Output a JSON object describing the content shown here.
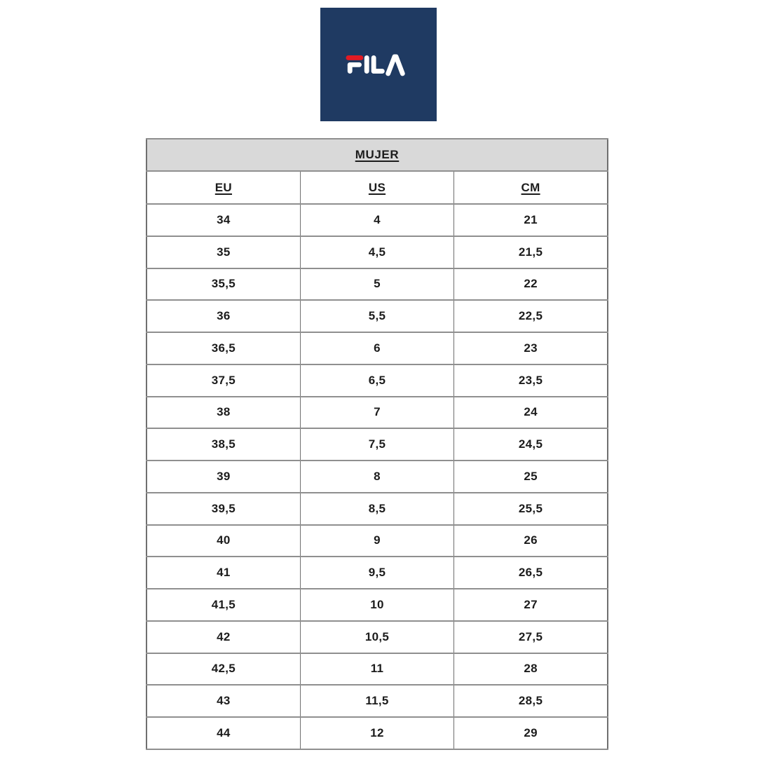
{
  "brand": {
    "name": "FILA",
    "logo_bg_color": "#1f3a62",
    "logo_accent_color": "#e21a23",
    "logo_letter_color": "#ffffff"
  },
  "table": {
    "title": "MUJER",
    "columns": [
      "EU",
      "US",
      "CM"
    ],
    "rows": [
      [
        "34",
        "4",
        "21"
      ],
      [
        "35",
        "4,5",
        "21,5"
      ],
      [
        "35,5",
        "5",
        "22"
      ],
      [
        "36",
        "5,5",
        "22,5"
      ],
      [
        "36,5",
        "6",
        "23"
      ],
      [
        "37,5",
        "6,5",
        "23,5"
      ],
      [
        "38",
        "7",
        "24"
      ],
      [
        "38,5",
        "7,5",
        "24,5"
      ],
      [
        "39",
        "8",
        "25"
      ],
      [
        "39,5",
        "8,5",
        "25,5"
      ],
      [
        "40",
        "9",
        "26"
      ],
      [
        "41",
        "9,5",
        "26,5"
      ],
      [
        "41,5",
        "10",
        "27"
      ],
      [
        "42",
        "10,5",
        "27,5"
      ],
      [
        "42,5",
        "11",
        "28"
      ],
      [
        "43",
        "11,5",
        "28,5"
      ],
      [
        "44",
        "12",
        "29"
      ]
    ],
    "title_bg_color": "#d9d9d9",
    "border_color": "#8f8f8f",
    "text_color": "#1c1c1c"
  }
}
